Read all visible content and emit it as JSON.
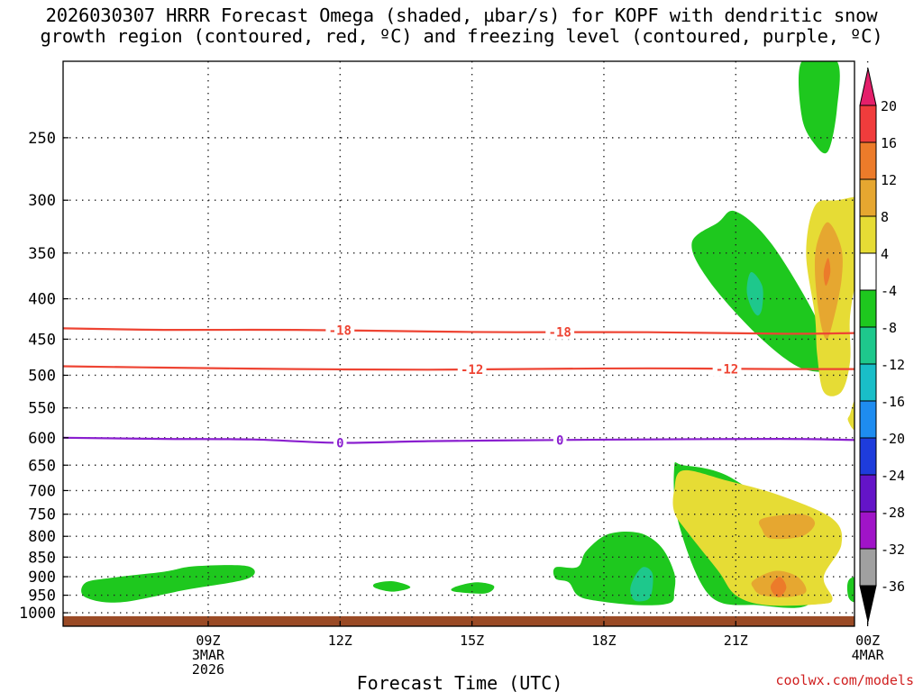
{
  "page": {
    "title_line1": "2026030307 HRRR Forecast Omega (shaded, µbar/s) for KOPF with dendritic snow",
    "title_line2": "growth region (contoured, red, ºC) and freezing level (contoured, purple, ºC)",
    "credit": "coolwx.com/models"
  },
  "chart_data": {
    "type": "time-height contour",
    "xlabel": "Forecast Time (UTC)",
    "ylabel": "",
    "x_range_hours_from_09Z": [
      -3.3,
      14.7
    ],
    "y_range_hPa": [
      200,
      1040
    ],
    "y_scale": "log-pressure",
    "grid": true,
    "x_ticks": [
      {
        "hour": 0,
        "label": "09Z",
        "sub1": "3MAR",
        "sub2": "2026"
      },
      {
        "hour": 3,
        "label": "12Z",
        "sub1": "",
        "sub2": ""
      },
      {
        "hour": 6,
        "label": "15Z",
        "sub1": "",
        "sub2": ""
      },
      {
        "hour": 9,
        "label": "18Z",
        "sub1": "",
        "sub2": ""
      },
      {
        "hour": 12,
        "label": "21Z",
        "sub1": "",
        "sub2": ""
      },
      {
        "hour": 15,
        "label": "00Z",
        "sub1": "4MAR",
        "sub2": ""
      }
    ],
    "y_ticks": [
      {
        "p": 250,
        "label": "250"
      },
      {
        "p": 300,
        "label": "300"
      },
      {
        "p": 350,
        "label": "350"
      },
      {
        "p": 400,
        "label": "400"
      },
      {
        "p": 450,
        "label": "450"
      },
      {
        "p": 500,
        "label": "500"
      },
      {
        "p": 550,
        "label": "550"
      },
      {
        "p": 600,
        "label": "600"
      },
      {
        "p": 650,
        "label": "650"
      },
      {
        "p": 700,
        "label": "700"
      },
      {
        "p": 750,
        "label": "750"
      },
      {
        "p": 800,
        "label": "800"
      },
      {
        "p": 850,
        "label": "850"
      },
      {
        "p": 900,
        "label": "900"
      },
      {
        "p": 950,
        "label": "950"
      },
      {
        "p": 1000,
        "label": "1000"
      }
    ],
    "colorbar": {
      "labels": [
        "20",
        "16",
        "12",
        "8",
        "4",
        "-4",
        "-8",
        "-12",
        "-16",
        "-20",
        "-24",
        "-28",
        "-32",
        "-36"
      ],
      "colors": [
        "#e41f6a",
        "#f03c3c",
        "#ec7b2a",
        "#e6a730",
        "#e6dc35",
        "#ffffff",
        "#1ec81e",
        "#1ec88c",
        "#19bec8",
        "#1e8cf0",
        "#1e3cdc",
        "#6414c8",
        "#a014c8",
        "#a0a0a0",
        "#000000"
      ]
    },
    "series": [
      {
        "name": "-18 C isotherm",
        "color": "#ee4433",
        "label": "-18",
        "points": [
          [
            -3.3,
            436
          ],
          [
            -1,
            438
          ],
          [
            2,
            438
          ],
          [
            5,
            440
          ],
          [
            7,
            441
          ],
          [
            10,
            441
          ],
          [
            13,
            443
          ],
          [
            14.7,
            442
          ]
        ],
        "label_at_hours": [
          3.0,
          8.0
        ]
      },
      {
        "name": "-12 C isotherm",
        "color": "#ee4433",
        "label": "-12",
        "points": [
          [
            -3.3,
            487
          ],
          [
            -1,
            489
          ],
          [
            2,
            491
          ],
          [
            5,
            492
          ],
          [
            7,
            491
          ],
          [
            10,
            490
          ],
          [
            13,
            491
          ],
          [
            14.7,
            491
          ]
        ],
        "label_at_hours": [
          6.0,
          11.8
        ]
      },
      {
        "name": "0 C freezing level",
        "color": "#8a1fcf",
        "label": "0",
        "points": [
          [
            -3.3,
            600
          ],
          [
            -1,
            602
          ],
          [
            1,
            603
          ],
          [
            3,
            609
          ],
          [
            5,
            606
          ],
          [
            8,
            604
          ],
          [
            10,
            603
          ],
          [
            13,
            602
          ],
          [
            14.7,
            604
          ]
        ],
        "label_at_hours": [
          3.0,
          8.0
        ]
      }
    ],
    "omega_regions": [
      {
        "color": "#1ec81e",
        "pts": [
          [
            -2.8,
            917
          ],
          [
            -2.2,
            903
          ],
          [
            -1,
            887
          ],
          [
            -0.3,
            873
          ],
          [
            0.9,
            873
          ],
          [
            0.9,
            905
          ],
          [
            -0.5,
            935
          ],
          [
            -2,
            970
          ],
          [
            -2.8,
            955
          ]
        ]
      },
      {
        "color": "#1ec81e",
        "pts": [
          [
            3.8,
            918
          ],
          [
            4.2,
            912
          ],
          [
            4.6,
            928
          ],
          [
            4.2,
            940
          ],
          [
            3.8,
            930
          ]
        ]
      },
      {
        "color": "#1ec81e",
        "pts": [
          [
            5.6,
            928
          ],
          [
            6.1,
            915
          ],
          [
            6.5,
            925
          ],
          [
            6.3,
            945
          ],
          [
            5.6,
            940
          ]
        ]
      },
      {
        "color": "#1ec81e",
        "pts": [
          [
            7.9,
            876
          ],
          [
            8.4,
            875
          ],
          [
            8.6,
            835
          ],
          [
            9.1,
            795
          ],
          [
            9.8,
            792
          ],
          [
            10.3,
            825
          ],
          [
            10.6,
            890
          ],
          [
            10.6,
            940
          ],
          [
            10.5,
            972
          ],
          [
            9.8,
            978
          ],
          [
            8.8,
            965
          ],
          [
            8.4,
            950
          ],
          [
            8.2,
            915
          ],
          [
            7.9,
            905
          ]
        ]
      },
      {
        "color": "#1ec88c",
        "pts": [
          [
            9.6,
            935
          ],
          [
            9.7,
            900
          ],
          [
            9.9,
            875
          ],
          [
            10.1,
            890
          ],
          [
            10.1,
            935
          ],
          [
            10.0,
            962
          ],
          [
            9.7,
            965
          ]
        ]
      },
      {
        "color": "#1ec81e",
        "pts": [
          [
            10.6,
            655
          ],
          [
            10.8,
            650
          ],
          [
            11.8,
            670
          ],
          [
            13.0,
            750
          ],
          [
            13.6,
            840
          ],
          [
            13.7,
            972
          ],
          [
            12.5,
            978
          ],
          [
            11.4,
            950
          ],
          [
            10.7,
            770
          ]
        ]
      },
      {
        "color": "#e6dc35",
        "pts": [
          [
            10.6,
            700
          ],
          [
            10.8,
            660
          ],
          [
            11.8,
            680
          ],
          [
            13.0,
            710
          ],
          [
            14.2,
            760
          ],
          [
            14.4,
            820
          ],
          [
            14.0,
            900
          ],
          [
            14.2,
            960
          ],
          [
            13.9,
            975
          ],
          [
            12.7,
            978
          ],
          [
            12.0,
            950
          ],
          [
            11.6,
            885
          ],
          [
            10.9,
            790
          ],
          [
            10.6,
            745
          ]
        ]
      },
      {
        "color": "#e6a730",
        "pts": [
          [
            12.6,
            760
          ],
          [
            13.5,
            750
          ],
          [
            13.8,
            770
          ],
          [
            13.5,
            800
          ],
          [
            12.8,
            805
          ],
          [
            12.6,
            785
          ]
        ]
      },
      {
        "color": "#e6a730",
        "pts": [
          [
            12.4,
            910
          ],
          [
            12.9,
            885
          ],
          [
            13.4,
            900
          ],
          [
            13.6,
            940
          ],
          [
            13.2,
            955
          ],
          [
            12.6,
            950
          ],
          [
            12.4,
            930
          ]
        ]
      },
      {
        "color": "#ec7b2a",
        "pts": [
          [
            12.8,
            923
          ],
          [
            13.0,
            900
          ],
          [
            13.15,
            928
          ],
          [
            13.0,
            955
          ],
          [
            12.85,
            945
          ]
        ]
      },
      {
        "color": "#1ec81e",
        "pts": [
          [
            12.0,
            310
          ],
          [
            12.8,
            340
          ],
          [
            13.8,
            420
          ],
          [
            14.2,
            485
          ],
          [
            13.5,
            490
          ],
          [
            12.5,
            445
          ],
          [
            11.4,
            380
          ],
          [
            11.0,
            340
          ],
          [
            11.6,
            320
          ]
        ]
      },
      {
        "color": "#1ec88c",
        "pts": [
          [
            12.35,
            370
          ],
          [
            12.6,
            385
          ],
          [
            12.6,
            410
          ],
          [
            12.5,
            420
          ],
          [
            12.35,
            410
          ],
          [
            12.25,
            390
          ]
        ]
      },
      {
        "color": "#e6dc35",
        "pts": [
          [
            14.3,
            300
          ],
          [
            15.2,
            298
          ],
          [
            15.15,
            335
          ],
          [
            14.8,
            370
          ],
          [
            14.6,
            420
          ],
          [
            14.6,
            480
          ],
          [
            14.4,
            525
          ],
          [
            14.0,
            525
          ],
          [
            13.85,
            470
          ],
          [
            13.8,
            420
          ],
          [
            13.6,
            350
          ],
          [
            13.8,
            305
          ]
        ]
      },
      {
        "color": "#e6a730",
        "pts": [
          [
            14.1,
            320
          ],
          [
            14.4,
            345
          ],
          [
            14.4,
            380
          ],
          [
            14.2,
            430
          ],
          [
            14.05,
            450
          ],
          [
            13.9,
            420
          ],
          [
            13.8,
            370
          ],
          [
            13.85,
            340
          ]
        ]
      },
      {
        "color": "#ec7b2a",
        "pts": [
          [
            14.1,
            355
          ],
          [
            14.15,
            370
          ],
          [
            14.05,
            385
          ],
          [
            14.0,
            370
          ]
        ]
      },
      {
        "color": "#1ec81e",
        "pts": [
          [
            13.5,
            200
          ],
          [
            14.3,
            200
          ],
          [
            14.3,
            230
          ],
          [
            14.1,
            260
          ],
          [
            13.8,
            255
          ],
          [
            13.5,
            235
          ]
        ]
      },
      {
        "color": "#e6dc35",
        "pts": [
          [
            14.6,
            560
          ],
          [
            14.7,
            540
          ],
          [
            14.7,
            585
          ],
          [
            14.55,
            570
          ]
        ]
      },
      {
        "color": "#1ec81e",
        "pts": [
          [
            14.6,
            905
          ],
          [
            15.1,
            900
          ],
          [
            15.4,
            915
          ],
          [
            15.0,
            960
          ],
          [
            14.7,
            970
          ],
          [
            14.55,
            950
          ]
        ]
      }
    ],
    "terrain_band_hPa": [
      1010,
      1040
    ],
    "terrain_color": "#9a4a25"
  }
}
